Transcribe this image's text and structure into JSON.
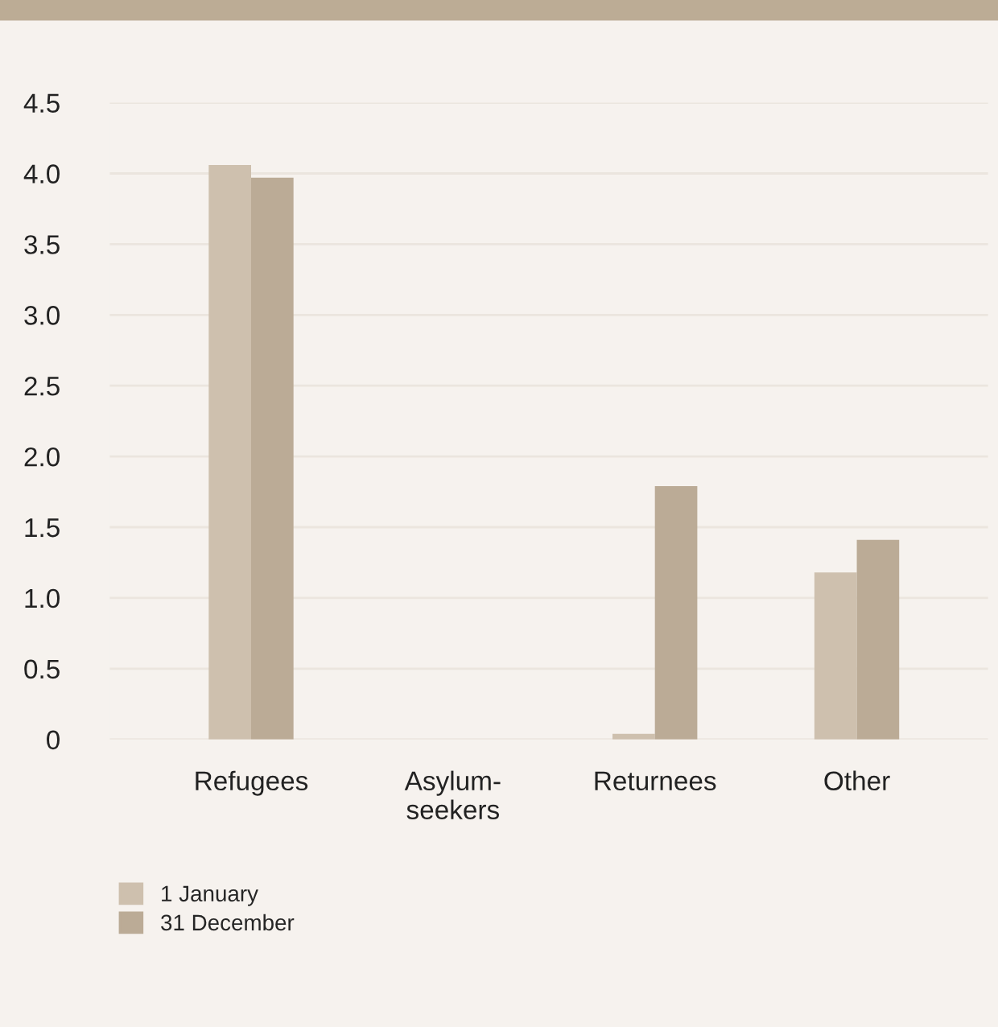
{
  "chart_data": {
    "type": "bar",
    "categories": [
      "Refugees",
      "Asylum-\nseekers",
      "Returnees",
      "Other"
    ],
    "series": [
      {
        "name": "1 January",
        "color": "#cec0ae",
        "values": [
          4.06,
          null,
          0.04,
          1.18
        ]
      },
      {
        "name": "31 December",
        "color": "#bbab96",
        "values": [
          3.97,
          null,
          1.79,
          1.41
        ]
      }
    ],
    "ylim": [
      0,
      4.5
    ],
    "yticks": [
      {
        "value": 0,
        "label": "0"
      },
      {
        "value": 0.5,
        "label": "0.5"
      },
      {
        "value": 1,
        "label": "1.0"
      },
      {
        "value": 1.5,
        "label": "1.5"
      },
      {
        "value": 2,
        "label": "2.0"
      },
      {
        "value": 2.5,
        "label": "2.5"
      },
      {
        "value": 3,
        "label": "3.0"
      },
      {
        "value": 3.5,
        "label": "3.5"
      },
      {
        "value": 4,
        "label": "4.0"
      },
      {
        "value": 4.5,
        "label": "4.5"
      }
    ],
    "grid": "y",
    "legend": "bottom left"
  }
}
